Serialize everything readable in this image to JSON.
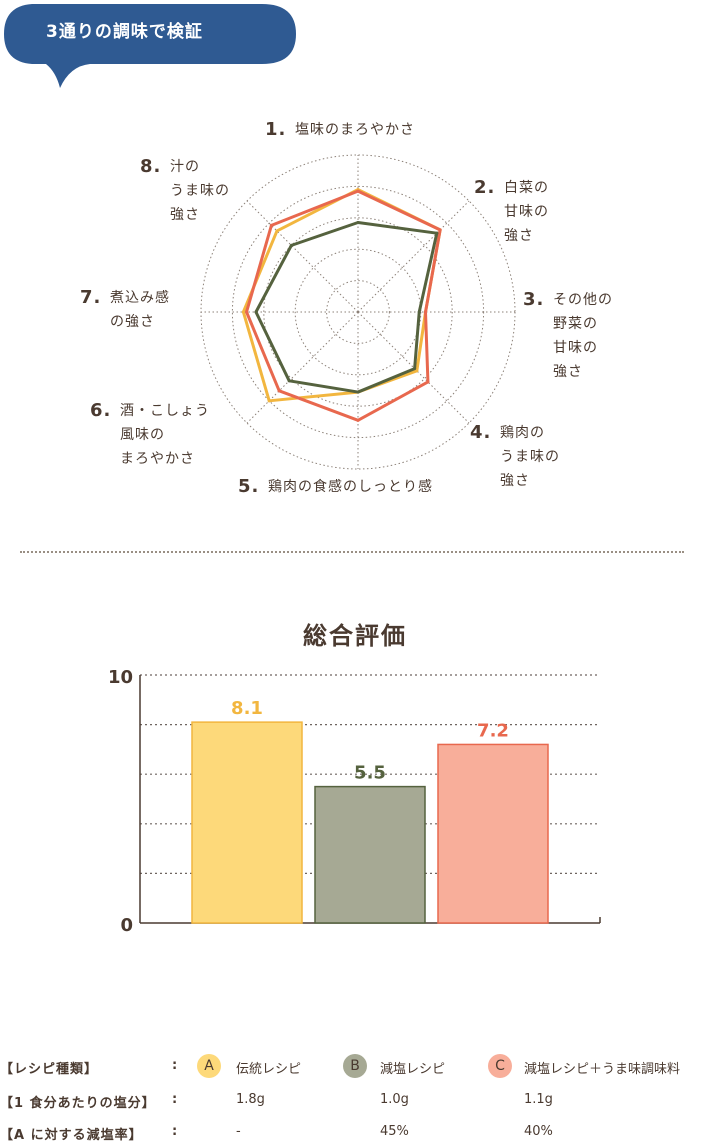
{
  "badge": {
    "label": "3通りの調味で検証",
    "color": "#2f5a92"
  },
  "radar": {
    "max": 10,
    "axes": [
      {
        "num": "1.",
        "lines": [
          "塩味のまろやかさ"
        ]
      },
      {
        "num": "2.",
        "lines": [
          "白菜の",
          "甘味の",
          "強さ"
        ]
      },
      {
        "num": "3.",
        "lines": [
          "その他の",
          "野菜の",
          "甘味の",
          "強さ"
        ]
      },
      {
        "num": "4.",
        "lines": [
          "鶏肉の",
          "うま味の",
          "強さ"
        ]
      },
      {
        "num": "5.",
        "lines": [
          "鶏肉の食感のしっとり感"
        ]
      },
      {
        "num": "6.",
        "lines": [
          "酒・こしょう",
          "風味の",
          "まろやかさ"
        ]
      },
      {
        "num": "7.",
        "lines": [
          "煮込み感",
          "の強さ"
        ]
      },
      {
        "num": "8.",
        "lines": [
          "汁の",
          "うま味の",
          "強さ"
        ]
      }
    ]
  },
  "chart_data": [
    {
      "type": "radar",
      "categories": [
        "1. 塩味のまろやかさ",
        "2. 白菜の甘味の強さ",
        "3. その他の野菜の甘味の強さ",
        "4. 鶏肉のうま味の強さ",
        "5. 鶏肉の食感のしっとり感",
        "6. 酒・こしょう風味のまろやかさ",
        "7. 煮込み感の強さ",
        "8. 汁のうま味の強さ"
      ],
      "range": [
        0,
        10
      ],
      "series": [
        {
          "key": "A",
          "color": "#f2b63f",
          "values": [
            7.8,
            7.4,
            4.3,
            5.3,
            5.1,
            8.0,
            7.3,
            7.3
          ]
        },
        {
          "key": "C",
          "color": "#e8684e",
          "values": [
            7.7,
            7.4,
            4.3,
            6.3,
            6.9,
            7.1,
            7.1,
            7.8
          ]
        },
        {
          "key": "B",
          "color": "#55623e",
          "values": [
            5.7,
            7.1,
            3.9,
            5.1,
            5.1,
            6.2,
            6.5,
            6.0
          ]
        }
      ]
    },
    {
      "type": "bar",
      "title": "総合評価",
      "categories": [
        "A",
        "B",
        "C"
      ],
      "values": [
        8.1,
        5.5,
        7.2
      ],
      "value_labels": [
        "8.1",
        "5.5",
        "7.2"
      ],
      "ylim": [
        0,
        10
      ],
      "yticks": [
        0,
        10
      ],
      "bar_colors": [
        "#fdd97a",
        "#a6a994",
        "#f8ae9a"
      ],
      "bar_borders": [
        "#f2b63f",
        "#55623e",
        "#e8684e"
      ],
      "label_colors": [
        "#f2b63f",
        "#55623e",
        "#e8684e"
      ]
    }
  ],
  "summary": {
    "title": "総合評価",
    "ytick_top": "10",
    "ytick_bottom": "0"
  },
  "legend": {
    "row_headers": [
      "【レシピ種類】",
      "【1 食分あたりの塩分】",
      "【A に対する減塩率】"
    ],
    "colon": ":",
    "recipes": [
      {
        "key": "A",
        "name": "伝統レシピ",
        "salt": "1.8g",
        "reduction": "-",
        "circle_color": "#fdd97a"
      },
      {
        "key": "B",
        "name": "減塩レシピ",
        "salt": "1.0g",
        "reduction": "45%",
        "circle_color": "#a6a994"
      },
      {
        "key": "C",
        "name": "減塩レシピ＋うま味調味料",
        "salt": "1.1g",
        "reduction": "40%",
        "circle_color": "#f8ae9a"
      }
    ]
  }
}
